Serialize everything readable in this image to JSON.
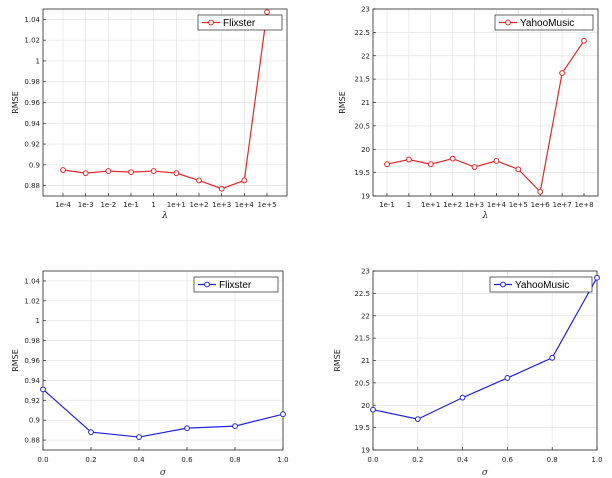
{
  "chart_data": [
    {
      "type": "line",
      "xlabel": "λ",
      "ylabel": "RMSE",
      "categories": [
        "1e-4",
        "1e-3",
        "1e-2",
        "1e-1",
        "1",
        "1e+1",
        "1e+2",
        "1e+3",
        "1e+4",
        "1e+5"
      ],
      "series": [
        {
          "name": "Flixster",
          "values": [
            0.895,
            0.892,
            0.894,
            0.893,
            0.894,
            0.892,
            0.885,
            0.877,
            0.885,
            1.047
          ]
        }
      ],
      "ylim": [
        0.87,
        1.05
      ],
      "yticks": [
        0.88,
        0.9,
        0.92,
        0.94,
        0.96,
        0.98,
        1,
        1.02,
        1.04
      ],
      "ytick_labels": [
        "0.88",
        "0.9",
        "0.92",
        "0.94",
        "0.96",
        "0.98",
        "1",
        "1.02",
        "1.04"
      ],
      "grid": true,
      "legend": "top-right",
      "color": "#e8262a"
    },
    {
      "type": "line",
      "xlabel": "λ",
      "ylabel": "RMSE",
      "categories": [
        "1e-1",
        "1",
        "1e+1",
        "1e+2",
        "1e+3",
        "1e+4",
        "1e+5",
        "1e+6",
        "1e+7",
        "1e+8"
      ],
      "series": [
        {
          "name": "YahooMusic",
          "values": [
            19.68,
            19.78,
            19.68,
            19.8,
            19.62,
            19.75,
            19.57,
            19.09,
            21.63,
            22.32
          ]
        }
      ],
      "ylim": [
        19,
        23
      ],
      "yticks": [
        19,
        19.5,
        20,
        20.5,
        21,
        21.5,
        22,
        22.5,
        23
      ],
      "ytick_labels": [
        "19",
        "19.5",
        "20",
        "20.5",
        "21",
        "21.5",
        "22",
        "22.5",
        "23"
      ],
      "grid": true,
      "legend": "top-right",
      "color": "#e8262a"
    },
    {
      "type": "line",
      "xlabel": "σ",
      "ylabel": "RMSE",
      "x": [
        0,
        0.2,
        0.4,
        0.6,
        0.8,
        1.0
      ],
      "xtick_labels": [
        "0.0",
        "0.2",
        "0.4",
        "0.6",
        "0.8",
        "1.0"
      ],
      "series": [
        {
          "name": "Flixster",
          "values": [
            0.931,
            0.888,
            0.883,
            0.892,
            0.894,
            0.906
          ]
        }
      ],
      "xlim": [
        0,
        1
      ],
      "ylim": [
        0.87,
        1.05
      ],
      "yticks": [
        0.88,
        0.9,
        0.92,
        0.94,
        0.96,
        0.98,
        1,
        1.02,
        1.04
      ],
      "ytick_labels": [
        "0.88",
        "0.9",
        "0.92",
        "0.94",
        "0.96",
        "0.98",
        "1",
        "1.02",
        "1.04"
      ],
      "grid": true,
      "legend": "top-right",
      "color": "#2323e0"
    },
    {
      "type": "line",
      "xlabel": "σ",
      "ylabel": "RMSE",
      "x": [
        0,
        0.2,
        0.4,
        0.6,
        0.8,
        1.0
      ],
      "xtick_labels": [
        "0.0",
        "0.2",
        "0.4",
        "0.6",
        "0.8",
        "1.0"
      ],
      "series": [
        {
          "name": "YahooMusic",
          "values": [
            19.9,
            19.69,
            20.17,
            20.61,
            21.06,
            22.85
          ]
        }
      ],
      "xlim": [
        0,
        1
      ],
      "ylim": [
        19,
        23
      ],
      "yticks": [
        19,
        19.5,
        20,
        20.5,
        21,
        21.5,
        22,
        22.5,
        23
      ],
      "ytick_labels": [
        "19",
        "19.5",
        "20",
        "20.5",
        "21",
        "21.5",
        "22",
        "22.5",
        "23"
      ],
      "grid": true,
      "legend": "top-right",
      "color": "#2323e0"
    }
  ]
}
